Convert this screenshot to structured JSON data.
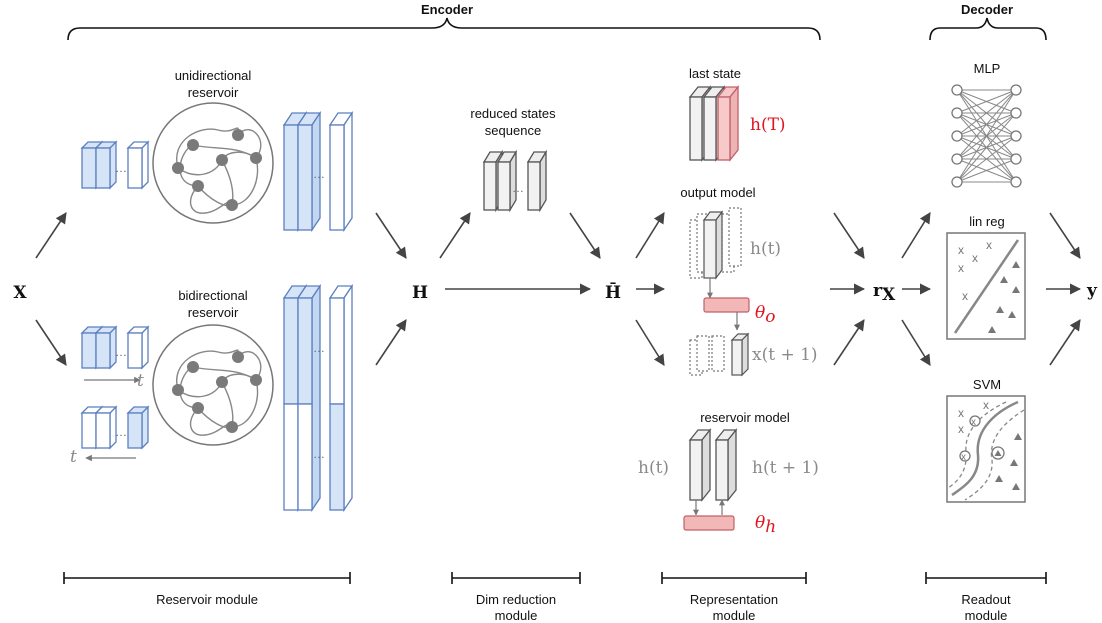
{
  "headers": {
    "encoder": "Encoder",
    "decoder": "Decoder"
  },
  "modules": {
    "reservoir": "Reservoir module",
    "dimred": [
      "Dim reduction",
      "module"
    ],
    "representation": [
      "Representation",
      "module"
    ],
    "readout": [
      "Readout",
      "module"
    ]
  },
  "reservoirs": {
    "uni": [
      "unidirectional",
      "reservoir"
    ],
    "bi": [
      "bidirectional",
      "reservoir"
    ]
  },
  "reduced": [
    "reduced states",
    "sequence"
  ],
  "representations": {
    "last_state": "last state",
    "output_model": "output model",
    "reservoir_model": "reservoir model"
  },
  "readouts": {
    "mlp": "MLP",
    "linreg": "lin reg",
    "svm": "SVM"
  },
  "symbols": {
    "x": "X",
    "h": "H",
    "hbar": "H̄",
    "rx": "r",
    "rx_sub": "X",
    "y": "y",
    "hT": "h(T)",
    "ht": "h(t)",
    "xt1": "x(t + 1)",
    "ht1": "h(t + 1)",
    "theta_o": "θ",
    "theta_o_sub": "o",
    "theta_h": "θ",
    "theta_h_sub": "h",
    "t": "t"
  },
  "colors": {
    "blue": "#d6e4f7",
    "blue_stroke": "#5b7fbf",
    "pink": "#f7c9c9",
    "pink_stroke": "#c0606a",
    "gray_stroke": "#555555",
    "red": "#e0141e"
  }
}
